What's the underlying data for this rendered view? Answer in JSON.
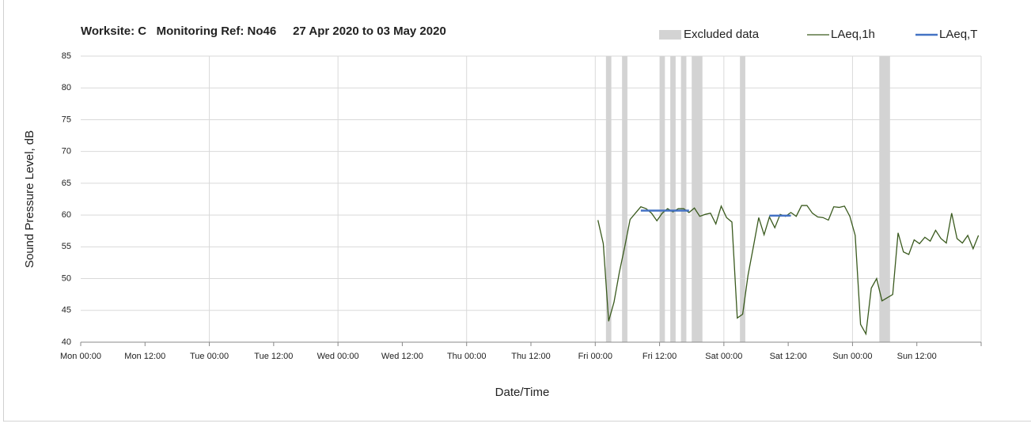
{
  "chart_data": {
    "type": "line",
    "title": "Worksite: C   Monitoring Ref: No46     27 Apr 2020 to 03 May 2020",
    "y_label": "Sound Pressure Level, dB",
    "x_label": "Date/Time",
    "xlim": [
      0,
      168
    ],
    "xticks": [
      {
        "value": 0,
        "label": "Mon 00:00"
      },
      {
        "value": 12,
        "label": "Mon 12:00"
      },
      {
        "value": 24,
        "label": "Tue 00:00"
      },
      {
        "value": 36,
        "label": "Tue 12:00"
      },
      {
        "value": 48,
        "label": "Wed 00:00"
      },
      {
        "value": 60,
        "label": "Wed 12:00"
      },
      {
        "value": 72,
        "label": "Thu 00:00"
      },
      {
        "value": 84,
        "label": "Thu 12:00"
      },
      {
        "value": 96,
        "label": "Fri 00:00"
      },
      {
        "value": 108,
        "label": "Fri 12:00"
      },
      {
        "value": 120,
        "label": "Sat 00:00"
      },
      {
        "value": 132,
        "label": "Sat 12:00"
      },
      {
        "value": 144,
        "label": "Sun 00:00"
      },
      {
        "value": 156,
        "label": "Sun 12:00"
      }
    ],
    "ylim": [
      40,
      85
    ],
    "yticks": [
      40,
      45,
      50,
      55,
      60,
      65,
      70,
      75,
      80,
      85
    ],
    "grid": true,
    "legend": "top-right",
    "excluded": {
      "name": "Excluded data",
      "color": "#d3d3d3",
      "ranges": [
        [
          98,
          99
        ],
        [
          101,
          102
        ],
        [
          108,
          109
        ],
        [
          110,
          111
        ],
        [
          112,
          113
        ],
        [
          114,
          116
        ],
        [
          123,
          124
        ],
        [
          149,
          151
        ]
      ]
    },
    "series": [
      {
        "name": "LAeq,1h",
        "color": "#3a5a1e",
        "x": [
          96.5,
          97.5,
          98.5,
          99.5,
          100.5,
          101.5,
          102.5,
          103.5,
          104.5,
          105.5,
          106.5,
          107.5,
          108.5,
          109.5,
          110.5,
          111.5,
          112.5,
          113.5,
          114.5,
          115.5,
          116.5,
          117.5,
          118.5,
          119.5,
          120.5,
          121.5,
          122.5,
          123.5,
          124.5,
          125.5,
          126.5,
          127.5,
          128.5,
          129.5,
          130.5,
          131.5,
          132.5,
          133.5,
          134.5,
          135.5,
          136.5,
          137.5,
          138.5,
          139.5,
          140.5,
          141.5,
          142.5,
          143.5,
          144.5,
          145.5,
          146.5,
          147.5,
          148.5,
          149.5,
          150.5,
          151.5,
          152.5,
          153.5,
          154.5,
          155.5,
          156.5,
          157.5,
          158.5,
          159.5,
          160.5,
          161.5,
          162.5,
          163.5,
          164.5,
          165.5,
          166.5,
          167.5
        ],
        "values": [
          59.2,
          55.5,
          43.3,
          46.3,
          51,
          55,
          59.3,
          60.3,
          61.3,
          61,
          60.3,
          59.1,
          60.3,
          61,
          60.5,
          61,
          61,
          60.4,
          61.1,
          59.8,
          60.1,
          60.3,
          58.6,
          61.4,
          59.6,
          58.9,
          43.8,
          44.4,
          50.5,
          55,
          59.6,
          56.9,
          59.7,
          58,
          60.1,
          59.8,
          60.4,
          59.8,
          61.5,
          61.5,
          60.3,
          59.7,
          59.6,
          59.2,
          61.3,
          61.2,
          61.4,
          59.8,
          56.8,
          42.8,
          41.3,
          48.5,
          50,
          46.5,
          47,
          47.5,
          57.2,
          54.2,
          53.8,
          56.1,
          55.5,
          56.5,
          55.9,
          57.6,
          56.3,
          55.6,
          60.3,
          56.3,
          55.6,
          56.8,
          54.7,
          56.8
        ]
      },
      {
        "name": "LAeq,T",
        "color": "#4472c4",
        "segments": [
          {
            "start": 104.5,
            "end": 113.5,
            "value": 60.7
          },
          {
            "start": 128.5,
            "end": 132.5,
            "value": 59.9
          }
        ]
      }
    ]
  }
}
